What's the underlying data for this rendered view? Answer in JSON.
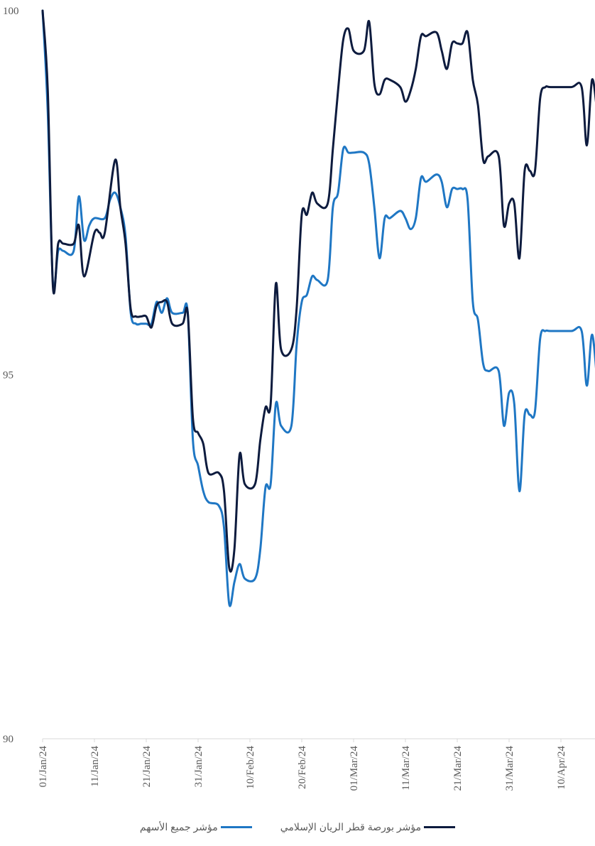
{
  "chart_data": {
    "type": "line",
    "ylim": [
      90,
      100
    ],
    "yticks": [
      "90",
      "95",
      "100"
    ],
    "xticks": [
      "01/Jan/24",
      "11/Jan/24",
      "21/Jan/24",
      "31/Jan/24",
      "10/Feb/24",
      "20/Feb/24",
      "01/Mar/24",
      "11/Mar/24",
      "21/Mar/24",
      "31/Mar/24",
      "10/Apr/24"
    ],
    "x_start": "2024-01-01",
    "x_end": "2024-04-17",
    "legend_position": "bottom",
    "series": [
      {
        "name": "مؤشر بورصة قطر الريان الإسلامي",
        "color": "#0d1b3e",
        "points": [
          [
            "2024-01-01",
            100.0
          ],
          [
            "2024-01-02",
            98.9
          ],
          [
            "2024-01-03",
            96.2
          ],
          [
            "2024-01-04",
            96.8
          ],
          [
            "2024-01-05",
            96.8
          ],
          [
            "2024-01-07",
            96.8
          ],
          [
            "2024-01-08",
            97.05
          ],
          [
            "2024-01-09",
            96.35
          ],
          [
            "2024-01-11",
            96.95
          ],
          [
            "2024-01-12",
            96.95
          ],
          [
            "2024-01-13",
            96.95
          ],
          [
            "2024-01-15",
            97.95
          ],
          [
            "2024-01-16",
            97.3
          ],
          [
            "2024-01-17",
            96.8
          ],
          [
            "2024-01-18",
            95.9
          ],
          [
            "2024-01-19",
            95.8
          ],
          [
            "2024-01-20",
            95.8
          ],
          [
            "2024-01-21",
            95.8
          ],
          [
            "2024-01-22",
            95.65
          ],
          [
            "2024-01-23",
            95.95
          ],
          [
            "2024-01-24",
            96.0
          ],
          [
            "2024-01-25",
            96.0
          ],
          [
            "2024-01-26",
            95.7
          ],
          [
            "2024-01-28",
            95.7
          ],
          [
            "2024-01-29",
            95.85
          ],
          [
            "2024-01-30",
            94.4
          ],
          [
            "2024-01-31",
            94.2
          ],
          [
            "2024-02-01",
            94.05
          ],
          [
            "2024-02-02",
            93.65
          ],
          [
            "2024-02-04",
            93.65
          ],
          [
            "2024-02-05",
            93.4
          ],
          [
            "2024-02-06",
            92.35
          ],
          [
            "2024-02-07",
            92.6
          ],
          [
            "2024-02-08",
            93.9
          ],
          [
            "2024-02-09",
            93.5
          ],
          [
            "2024-02-11",
            93.5
          ],
          [
            "2024-02-12",
            94.1
          ],
          [
            "2024-02-13",
            94.55
          ],
          [
            "2024-02-14",
            94.6
          ],
          [
            "2024-02-15",
            96.25
          ],
          [
            "2024-02-16",
            95.35
          ],
          [
            "2024-02-18",
            95.35
          ],
          [
            "2024-02-19",
            95.9
          ],
          [
            "2024-02-20",
            97.2
          ],
          [
            "2024-02-21",
            97.2
          ],
          [
            "2024-02-22",
            97.5
          ],
          [
            "2024-02-23",
            97.35
          ],
          [
            "2024-02-25",
            97.35
          ],
          [
            "2024-02-26",
            98.1
          ],
          [
            "2024-02-27",
            98.9
          ],
          [
            "2024-02-28",
            99.6
          ],
          [
            "2024-02-29",
            99.75
          ],
          [
            "2024-03-01",
            99.45
          ],
          [
            "2024-03-03",
            99.45
          ],
          [
            "2024-03-04",
            99.85
          ],
          [
            "2024-03-05",
            99.0
          ],
          [
            "2024-03-06",
            98.85
          ],
          [
            "2024-03-07",
            99.05
          ],
          [
            "2024-03-08",
            99.05
          ],
          [
            "2024-03-10",
            98.95
          ],
          [
            "2024-03-11",
            98.75
          ],
          [
            "2024-03-12",
            98.9
          ],
          [
            "2024-03-13",
            99.2
          ],
          [
            "2024-03-14",
            99.65
          ],
          [
            "2024-03-15",
            99.65
          ],
          [
            "2024-03-17",
            99.7
          ],
          [
            "2024-03-18",
            99.45
          ],
          [
            "2024-03-19",
            99.2
          ],
          [
            "2024-03-20",
            99.55
          ],
          [
            "2024-03-21",
            99.55
          ],
          [
            "2024-03-22",
            99.55
          ],
          [
            "2024-03-23",
            99.7
          ],
          [
            "2024-03-24",
            99.05
          ],
          [
            "2024-03-25",
            98.7
          ],
          [
            "2024-03-26",
            97.95
          ],
          [
            "2024-03-27",
            98.0
          ],
          [
            "2024-03-29",
            98.0
          ],
          [
            "2024-03-30",
            97.05
          ],
          [
            "2024-03-31",
            97.35
          ],
          [
            "2024-04-01",
            97.35
          ],
          [
            "2024-04-02",
            96.6
          ],
          [
            "2024-04-03",
            97.8
          ],
          [
            "2024-04-04",
            97.8
          ],
          [
            "2024-04-05",
            97.8
          ],
          [
            "2024-04-06",
            98.8
          ],
          [
            "2024-04-07",
            98.95
          ],
          [
            "2024-04-08",
            98.95
          ],
          [
            "2024-04-12",
            98.95
          ],
          [
            "2024-04-14",
            98.95
          ],
          [
            "2024-04-15",
            98.15
          ],
          [
            "2024-04-16",
            99.05
          ],
          [
            "2024-04-17",
            98.6
          ]
        ]
      },
      {
        "name": "مؤشر جميع الأسهم",
        "color": "#1f77c4",
        "points": [
          [
            "2024-01-01",
            100.0
          ],
          [
            "2024-01-02",
            98.6
          ],
          [
            "2024-01-03",
            96.25
          ],
          [
            "2024-01-04",
            96.7
          ],
          [
            "2024-01-05",
            96.7
          ],
          [
            "2024-01-07",
            96.7
          ],
          [
            "2024-01-08",
            97.45
          ],
          [
            "2024-01-09",
            96.85
          ],
          [
            "2024-01-10",
            97.05
          ],
          [
            "2024-01-11",
            97.15
          ],
          [
            "2024-01-13",
            97.15
          ],
          [
            "2024-01-14",
            97.4
          ],
          [
            "2024-01-15",
            97.5
          ],
          [
            "2024-01-16",
            97.3
          ],
          [
            "2024-01-17",
            96.9
          ],
          [
            "2024-01-18",
            95.85
          ],
          [
            "2024-01-19",
            95.7
          ],
          [
            "2024-01-20",
            95.7
          ],
          [
            "2024-01-21",
            95.7
          ],
          [
            "2024-01-22",
            95.7
          ],
          [
            "2024-01-23",
            96.0
          ],
          [
            "2024-01-24",
            95.85
          ],
          [
            "2024-01-25",
            96.05
          ],
          [
            "2024-01-26",
            95.85
          ],
          [
            "2024-01-28",
            95.85
          ],
          [
            "2024-01-29",
            95.85
          ],
          [
            "2024-01-30",
            94.1
          ],
          [
            "2024-01-31",
            93.75
          ],
          [
            "2024-02-01",
            93.4
          ],
          [
            "2024-02-02",
            93.25
          ],
          [
            "2024-02-04",
            93.2
          ],
          [
            "2024-02-05",
            92.9
          ],
          [
            "2024-02-06",
            91.85
          ],
          [
            "2024-02-07",
            92.15
          ],
          [
            "2024-02-08",
            92.4
          ],
          [
            "2024-02-09",
            92.2
          ],
          [
            "2024-02-11",
            92.2
          ],
          [
            "2024-02-12",
            92.6
          ],
          [
            "2024-02-13",
            93.45
          ],
          [
            "2024-02-14",
            93.5
          ],
          [
            "2024-02-15",
            94.6
          ],
          [
            "2024-02-16",
            94.3
          ],
          [
            "2024-02-18",
            94.3
          ],
          [
            "2024-02-19",
            95.4
          ],
          [
            "2024-02-20",
            96.0
          ],
          [
            "2024-02-21",
            96.1
          ],
          [
            "2024-02-22",
            96.35
          ],
          [
            "2024-02-23",
            96.3
          ],
          [
            "2024-02-25",
            96.3
          ],
          [
            "2024-02-26",
            97.3
          ],
          [
            "2024-02-27",
            97.5
          ],
          [
            "2024-02-28",
            98.1
          ],
          [
            "2024-02-29",
            98.05
          ],
          [
            "2024-03-01",
            98.05
          ],
          [
            "2024-03-03",
            98.05
          ],
          [
            "2024-03-04",
            97.9
          ],
          [
            "2024-03-05",
            97.3
          ],
          [
            "2024-03-06",
            96.6
          ],
          [
            "2024-03-07",
            97.15
          ],
          [
            "2024-03-08",
            97.15
          ],
          [
            "2024-03-10",
            97.25
          ],
          [
            "2024-03-11",
            97.15
          ],
          [
            "2024-03-12",
            97.0
          ],
          [
            "2024-03-13",
            97.15
          ],
          [
            "2024-03-14",
            97.7
          ],
          [
            "2024-03-15",
            97.65
          ],
          [
            "2024-03-17",
            97.75
          ],
          [
            "2024-03-18",
            97.65
          ],
          [
            "2024-03-19",
            97.3
          ],
          [
            "2024-03-20",
            97.55
          ],
          [
            "2024-03-21",
            97.55
          ],
          [
            "2024-03-22",
            97.55
          ],
          [
            "2024-03-23",
            97.4
          ],
          [
            "2024-03-24",
            96.0
          ],
          [
            "2024-03-25",
            95.75
          ],
          [
            "2024-03-26",
            95.15
          ],
          [
            "2024-03-27",
            95.05
          ],
          [
            "2024-03-29",
            95.05
          ],
          [
            "2024-03-30",
            94.3
          ],
          [
            "2024-03-31",
            94.75
          ],
          [
            "2024-04-01",
            94.6
          ],
          [
            "2024-04-02",
            93.4
          ],
          [
            "2024-04-03",
            94.45
          ],
          [
            "2024-04-04",
            94.45
          ],
          [
            "2024-04-05",
            94.5
          ],
          [
            "2024-04-06",
            95.5
          ],
          [
            "2024-04-07",
            95.6
          ],
          [
            "2024-04-08",
            95.6
          ],
          [
            "2024-04-12",
            95.6
          ],
          [
            "2024-04-14",
            95.6
          ],
          [
            "2024-04-15",
            94.85
          ],
          [
            "2024-04-16",
            95.55
          ],
          [
            "2024-04-17",
            94.9
          ]
        ]
      }
    ]
  }
}
